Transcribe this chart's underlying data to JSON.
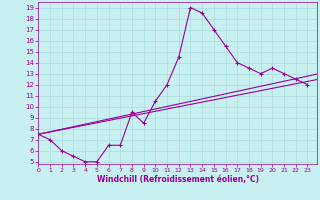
{
  "xlabel": "Windchill (Refroidissement éolien,°C)",
  "bg_color": "#c8f0f0",
  "line_color": "#990099",
  "grid_color": "#aadddd",
  "x_hours": [
    0,
    1,
    2,
    3,
    4,
    5,
    6,
    7,
    8,
    9,
    10,
    11,
    12,
    13,
    14,
    15,
    16,
    17,
    18,
    19,
    20,
    21,
    22,
    23
  ],
  "y_temp": [
    7.5,
    7.0,
    6.0,
    5.5,
    5.0,
    5.0,
    6.5,
    6.5,
    9.5,
    8.5,
    10.5,
    12.0,
    14.5,
    19.0,
    18.5,
    17.0,
    15.5,
    14.0,
    13.5,
    13.0,
    13.5,
    13.0,
    12.5,
    12.0
  ],
  "line2_x": [
    0,
    24
  ],
  "line2_y": [
    7.5,
    13.0
  ],
  "line3_x": [
    0,
    24
  ],
  "line3_y": [
    7.5,
    12.5
  ],
  "xlim": [
    0,
    23.8
  ],
  "ylim": [
    4.8,
    19.5
  ],
  "xticks": [
    0,
    1,
    2,
    3,
    4,
    5,
    6,
    7,
    8,
    9,
    10,
    11,
    12,
    13,
    14,
    15,
    16,
    17,
    18,
    19,
    20,
    21,
    22,
    23
  ],
  "yticks": [
    5,
    6,
    7,
    8,
    9,
    10,
    11,
    12,
    13,
    14,
    15,
    16,
    17,
    18,
    19
  ]
}
